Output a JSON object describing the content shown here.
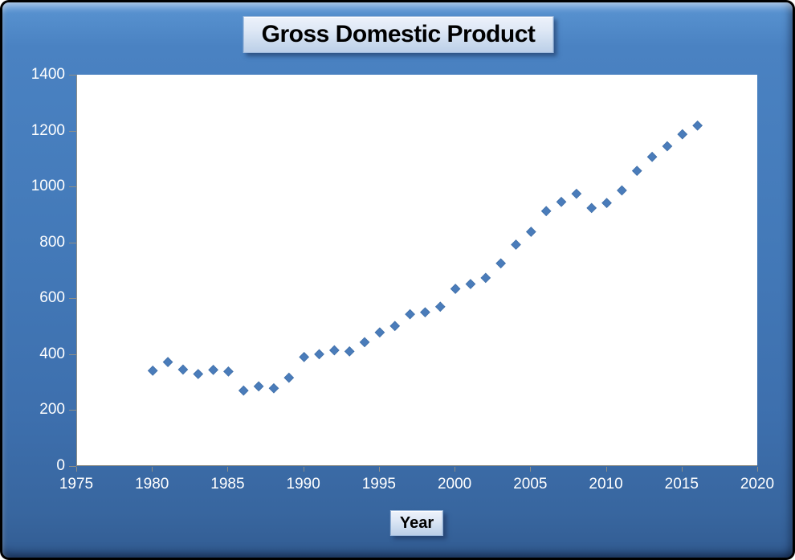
{
  "chart_data": {
    "type": "scatter",
    "title": "Gross Domestic Product",
    "xlabel": "Year",
    "ylabel": "",
    "x": [
      1980,
      1981,
      1982,
      1983,
      1984,
      1985,
      1986,
      1987,
      1988,
      1989,
      1990,
      1991,
      1992,
      1993,
      1994,
      1995,
      1996,
      1997,
      1998,
      1999,
      2000,
      2001,
      2002,
      2003,
      2004,
      2005,
      2006,
      2007,
      2008,
      2009,
      2010,
      2011,
      2012,
      2013,
      2014,
      2015,
      2016
    ],
    "values": [
      341,
      372,
      345,
      329,
      344,
      338,
      270,
      285,
      278,
      316,
      390,
      400,
      414,
      410,
      443,
      478,
      501,
      543,
      550,
      570,
      634,
      651,
      673,
      725,
      792,
      838,
      912,
      945,
      974,
      923,
      941,
      986,
      1056,
      1106,
      1144,
      1187,
      1218
    ],
    "xlim": [
      1975,
      2020
    ],
    "ylim": [
      0,
      1400
    ],
    "x_ticks": [
      "1975",
      "1980",
      "1985",
      "1990",
      "1995",
      "2000",
      "2005",
      "2010",
      "2015",
      "2020"
    ],
    "y_ticks": [
      "0",
      "200",
      "400",
      "600",
      "800",
      "1000",
      "1200",
      "1400"
    ],
    "grid": false,
    "legend": false,
    "marker": "diamond",
    "marker_color": "#4A7CBA",
    "marker_edge_color": "#3E6EA8"
  },
  "colors": {
    "background_blue": "#4379B8",
    "plot_background": "#FFFFFF",
    "axis_line": "#8F8F87",
    "axis_text": "#FFFFFF",
    "title_text": "#000000",
    "label_box_fill": "#DDE7F5"
  }
}
